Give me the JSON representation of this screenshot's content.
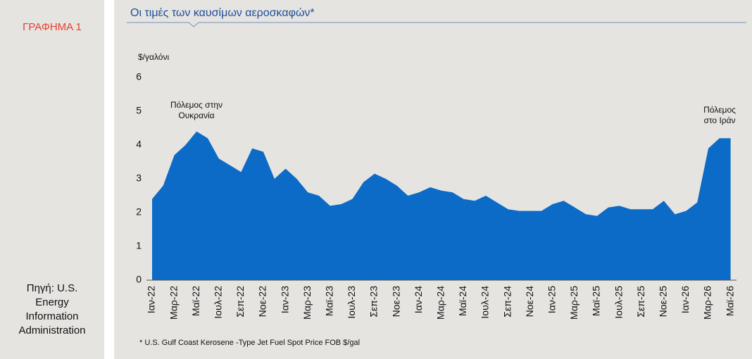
{
  "sidebar": {
    "label": "ΓΡΑΦΗΜΑ 1",
    "source": "Πηγή: U.S. Energy Information Administration"
  },
  "chart_data": {
    "type": "area",
    "title": "Οι τιμές των καυσίμων αεροσκαφών*",
    "y_label": "$/γαλόνι",
    "footnote": "* U.S. Gulf Coast Kerosene  -Type Jet Fuel Spot Price FOB $/gal",
    "annotations": [
      [
        "Πόλεμος στην",
        "Ουκρανία"
      ],
      [
        "Πόλεμος",
        "στο Ιράν"
      ]
    ],
    "color": "#0b6bc6",
    "categories": [
      "Ιαν-22",
      null,
      "Μαρ-22",
      null,
      "Μαϊ-22",
      null,
      "Ιουλ-22",
      null,
      "Σεπ-22",
      null,
      "Νοε-22",
      null,
      "Ιαν-23",
      null,
      "Μαρ-23",
      null,
      "Μαϊ-23",
      null,
      "Ιουλ-23",
      null,
      "Σεπ-23",
      null,
      "Νοε-23",
      null,
      "Ιαν-24",
      null,
      "Μαρ-24",
      null,
      "Μαϊ-24",
      null,
      "Ιουλ-24",
      null,
      "Σεπ-24",
      null,
      "Νοε-24",
      null,
      "Ιαν-25",
      null,
      "Μαρ-25",
      null,
      "Μαϊ-25",
      null,
      "Ιουλ-25",
      null,
      "Σεπ-25",
      null,
      "Νοε-25",
      null,
      "Ιαν-26",
      null,
      "Μαρ-26",
      null,
      "Μαϊ-26"
    ],
    "values": [
      2.4,
      2.8,
      3.7,
      4.0,
      4.4,
      4.2,
      3.6,
      3.4,
      3.2,
      3.9,
      3.8,
      3.0,
      3.3,
      3.0,
      2.6,
      2.5,
      2.2,
      2.25,
      2.4,
      2.9,
      3.15,
      3.0,
      2.8,
      2.5,
      2.6,
      2.75,
      2.65,
      2.6,
      2.4,
      2.35,
      2.5,
      2.3,
      2.1,
      2.05,
      2.05,
      2.05,
      2.25,
      2.35,
      2.15,
      1.95,
      1.9,
      2.15,
      2.2,
      2.1,
      2.1,
      2.1,
      2.35,
      1.95,
      2.05,
      2.3,
      3.9,
      4.2,
      4.2
    ],
    "ylim": [
      0,
      6
    ],
    "yticks": [
      0,
      1,
      2,
      3,
      4,
      5,
      6
    ]
  }
}
